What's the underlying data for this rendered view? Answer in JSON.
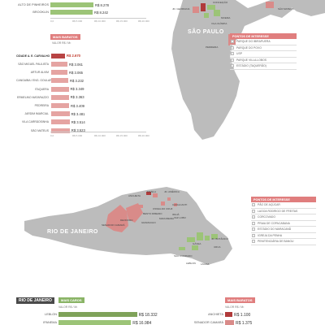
{
  "sp_top_tail": [
    {
      "name": "ALTO DE PINHEIROS",
      "value": "R$ 8.278",
      "frac": 0.53
    },
    {
      "name": "BROOKLIN",
      "value": "R$ 8.242",
      "frac": 0.52
    }
  ],
  "sp_top_ticks": [
    "0,0",
    "R$ 5.000",
    "R$ 10.000",
    "R$ 15.000",
    "R$ 20.000"
  ],
  "sp_cheap": {
    "header": "MAIS BARATOS",
    "sub": "VALOR R$ / M²",
    "rows": [
      {
        "name": "CIDADE A. E. CARVALHO",
        "value": "R$ 2.670",
        "frac": 0.17,
        "hl": true
      },
      {
        "name": "SÃO MIGUEL PAULISTA",
        "value": "R$ 3.061",
        "frac": 0.2
      },
      {
        "name": "ARTUR ALVIM",
        "value": "R$ 3.065",
        "frac": 0.2
      },
      {
        "name": "CANGAÍBA / ENG. GOULART",
        "value": "R$ 3.232",
        "frac": 0.21
      },
      {
        "name": "ITAQUERA",
        "value": "R$ 3.349",
        "frac": 0.215
      },
      {
        "name": "ERMELINO MATARAZZO",
        "value": "R$ 3.363",
        "frac": 0.216
      },
      {
        "name": "PEDREIRA",
        "value": "R$ 3.409",
        "frac": 0.22
      },
      {
        "name": "JARDIM IMARCIAL",
        "value": "R$ 3.481",
        "frac": 0.225
      },
      {
        "name": "VILA CARRÃOSINHA",
        "value": "R$ 3.514",
        "frac": 0.227
      },
      {
        "name": "SÃO MATEUS",
        "value": "R$ 3.523",
        "frac": 0.228
      }
    ],
    "ticks": [
      "0,0",
      "R$ 5.000",
      "R$ 10.000",
      "R$ 15.000",
      "R$ 20.000"
    ]
  },
  "sp_map": {
    "city": "SÃO PAULO",
    "labels": [
      "JD. GEORGINA",
      "CONCEIÇÃO",
      "SÃO MATEUS",
      "MOEMA",
      "VILA OLÍMPIA",
      "PEDREIRA"
    ]
  },
  "sp_legend": {
    "header": "PONTOS DE INTERESSE",
    "items": [
      "PARQUE DO IBIRAPUERA",
      "PARQUE DO POVO",
      "USP",
      "PARQUE VILLA-LOBOS",
      "ESTÁDIO (TAQUERÃO)"
    ]
  },
  "rj_map": {
    "city": "RIO DE JANEIRO",
    "labels": [
      "FAVELA",
      "JD. AMÉRICA",
      "ANCHIETA",
      "OSWALDO CRUZ",
      "CAVALCANTI",
      "IRAJÁ",
      "VAZ LOBO",
      "BENTO RIBEIRO",
      "MADUREIRA",
      "GRAMACHO",
      "DEODORO",
      "SENADOR CAMARÁ",
      "JD. BOTÂNICO",
      "GÁVEA",
      "URCA",
      "SÃO CONRADO",
      "LEBLON",
      "LAGOA"
    ]
  },
  "rj_legend": {
    "header": "PONTOS DE INTERESSE",
    "items": [
      "PÃO DE AÇÚCAR",
      "LAGOA RODRIGO DE FREITAS",
      "CORCOVADO",
      "PRAIA DE COPACABANA",
      "ESTÁDIO DO MARACANÃ",
      "IGREJA DA PENHA",
      "PENITENCIÁRIA DE BANGU"
    ]
  },
  "rj_bottom": {
    "title": "RIO DE JANEIRO",
    "expensive_header": "MAIS CAROS",
    "cheap_header": "MAIS BARATOS",
    "sub": "VALOR R$ / M²",
    "expensive": [
      {
        "name": "LEBLON",
        "value": "R$ 18.332",
        "frac": 0.92
      },
      {
        "name": "IPANEMA",
        "value": "R$ 16.984",
        "frac": 0.85
      }
    ],
    "cheap": [
      {
        "name": "ANCHIETA",
        "value": "R$ 1.100",
        "frac": 0.09
      },
      {
        "name": "SENADOR CAMARÁ",
        "value": "R$ 1.375",
        "frac": 0.11
      }
    ]
  },
  "colors": {
    "green": "#9cc477",
    "red": "#d98b89",
    "dark_red": "#b03a3a",
    "map_gray": "#bcbcbc"
  }
}
